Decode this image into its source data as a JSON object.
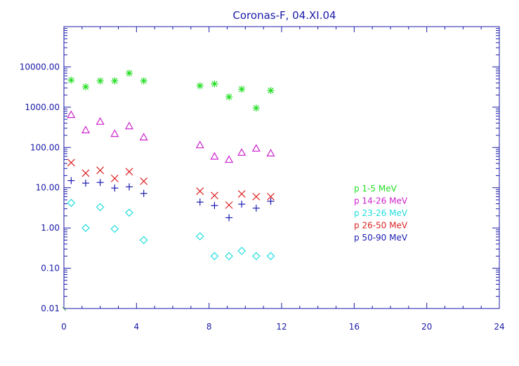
{
  "chart_data": {
    "type": "scatter",
    "title": "Coronas-F, 04.XI.04",
    "xlabel": "",
    "ylabel": "",
    "xlim": [
      0,
      24
    ],
    "ylim": [
      0.01,
      100000
    ],
    "y_scale": "log",
    "grid": false,
    "legend_position": "right",
    "axis_color": "#1a1aa8",
    "x_ticks": [
      {
        "value": 0,
        "label": "0"
      },
      {
        "value": 4,
        "label": "4"
      },
      {
        "value": 8,
        "label": "8"
      },
      {
        "value": 12,
        "label": "12"
      },
      {
        "value": 16,
        "label": "16"
      },
      {
        "value": 20,
        "label": "20"
      },
      {
        "value": 24,
        "label": "24"
      }
    ],
    "y_ticks": [
      {
        "value": 0.01,
        "label": "0.01"
      },
      {
        "value": 0.1,
        "label": "0.10"
      },
      {
        "value": 1,
        "label": "1.00"
      },
      {
        "value": 10,
        "label": "10.00"
      },
      {
        "value": 100,
        "label": "100.00"
      },
      {
        "value": 1000,
        "label": "1000.00"
      },
      {
        "value": 10000,
        "label": "10000.00"
      }
    ],
    "series": [
      {
        "name": "p 1-5 MeV",
        "color": "#22dd22",
        "marker": "asterisk",
        "x": [
          0.4,
          1.2,
          2.0,
          2.8,
          3.6,
          4.4,
          7.5,
          8.3,
          9.1,
          9.8,
          10.6,
          11.4
        ],
        "y": [
          4700,
          3200,
          4500,
          4500,
          7000,
          4500,
          3400,
          3800,
          1800,
          2800,
          950,
          2600
        ]
      },
      {
        "name": "p 14-26 MeV",
        "color": "#cc22cc",
        "marker": "triangle",
        "x": [
          0.4,
          1.2,
          2.0,
          2.8,
          3.6,
          4.4,
          7.5,
          8.3,
          9.1,
          9.8,
          10.6,
          11.4
        ],
        "y": [
          650,
          270,
          440,
          220,
          340,
          180,
          115,
          60,
          50,
          75,
          95,
          72
        ]
      },
      {
        "name": "p 23-26 MeV",
        "color": "#22dddd",
        "marker": "diamond",
        "x": [
          0.4,
          1.2,
          2.0,
          2.8,
          3.6,
          4.4,
          7.5,
          8.3,
          9.1,
          9.8,
          10.6,
          11.4
        ],
        "y": [
          4.2,
          1.0,
          3.3,
          0.95,
          2.4,
          0.5,
          0.62,
          0.2,
          0.2,
          0.27,
          0.2,
          0.2
        ]
      },
      {
        "name": "p 26-50 MeV",
        "color": "#dd2222",
        "marker": "x",
        "x": [
          0.4,
          1.2,
          2.0,
          2.8,
          3.6,
          4.4,
          7.5,
          8.3,
          9.1,
          9.8,
          10.6,
          11.4
        ],
        "y": [
          42,
          23,
          27,
          17,
          25,
          14.5,
          8.2,
          6.4,
          3.7,
          7.0,
          6.0,
          6.0
        ]
      },
      {
        "name": "p 50-90 MeV",
        "color": "#1a1ab0",
        "marker": "plus",
        "x": [
          0.4,
          1.2,
          2.0,
          2.8,
          3.6,
          4.4,
          7.5,
          8.3,
          9.1,
          9.8,
          10.6,
          11.4
        ],
        "y": [
          15,
          13,
          13.5,
          9.8,
          10.5,
          7.2,
          4.4,
          3.6,
          1.8,
          3.9,
          3.1,
          4.6
        ]
      }
    ]
  }
}
